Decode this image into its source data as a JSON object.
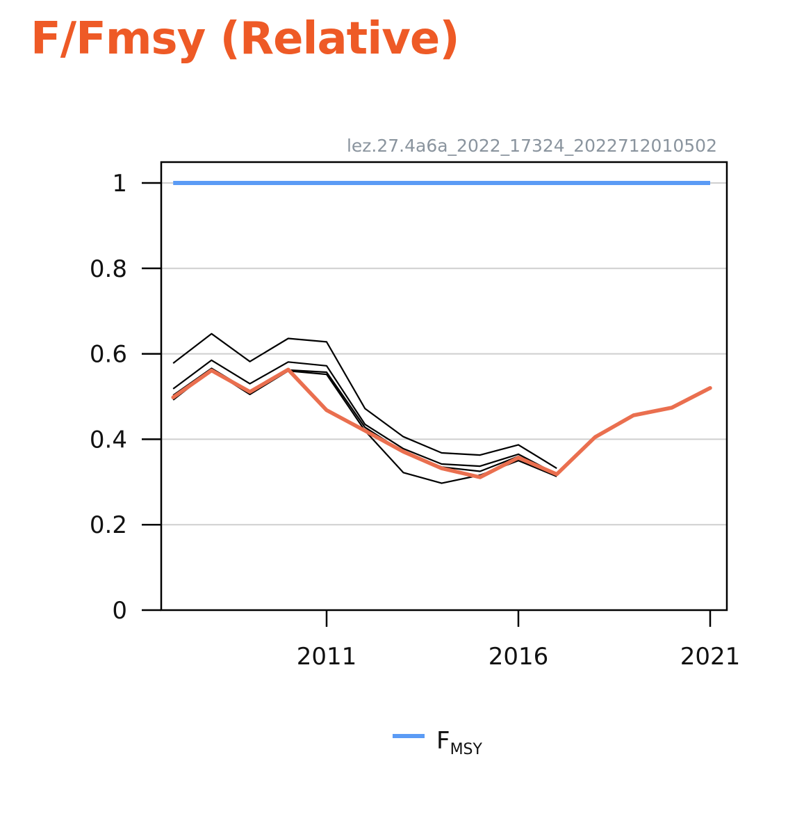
{
  "title": "F/Fmsy (Relative)",
  "colors": {
    "title": "#ee5a26",
    "reference": "#5b9bf5",
    "latest": "#ea6f4f",
    "historical": "#000000",
    "grid": "#cfcfcf"
  },
  "chart_data": {
    "type": "line",
    "subtitle": "lez.27.4a6a_2022_17324_2022712010502",
    "xlabel": "",
    "ylabel": "",
    "xlim": [
      2006.6,
      2021.4
    ],
    "ylim": [
      0,
      1.05
    ],
    "x_ticks": [
      2011,
      2016,
      2021
    ],
    "y_ticks": [
      0,
      0.2,
      0.4,
      0.6,
      0.8,
      1
    ],
    "y_tick_labels": [
      "0",
      "0.2",
      "0.4",
      "0.6",
      "0.8",
      "1"
    ],
    "grid": "horizontal",
    "legend_position": "bottom-center",
    "reference_line": {
      "name": "F",
      "name_sub": "MSY",
      "value": 1,
      "x": [
        2007,
        2021
      ]
    },
    "historical_series": [
      {
        "x": [
          2007,
          2008,
          2009,
          2010,
          2011,
          2012,
          2013,
          2014,
          2015,
          2016,
          2017
        ],
        "y": [
          0.578,
          0.647,
          0.582,
          0.636,
          0.628,
          0.472,
          0.406,
          0.368,
          0.363,
          0.387,
          0.332
        ]
      },
      {
        "x": [
          2007,
          2008,
          2009,
          2010,
          2011,
          2012,
          2013,
          2014,
          2015,
          2016,
          2017
        ],
        "y": [
          0.518,
          0.585,
          0.53,
          0.581,
          0.572,
          0.435,
          0.378,
          0.342,
          0.337,
          0.365,
          0.318
        ]
      },
      {
        "x": [
          2007,
          2008,
          2009,
          2010,
          2011,
          2012,
          2013,
          2014,
          2015,
          2016,
          2017
        ],
        "y": [
          0.492,
          0.562,
          0.505,
          0.56,
          0.552,
          0.42,
          0.322,
          0.297,
          0.316,
          0.35,
          0.313
        ]
      },
      {
        "x": [
          2007,
          2008,
          2009,
          2010,
          2011,
          2012,
          2013,
          2014,
          2015,
          2016,
          2017
        ],
        "y": [
          0.503,
          0.566,
          0.512,
          0.562,
          0.557,
          0.428,
          0.37,
          0.335,
          0.325,
          0.36,
          0.316
        ]
      }
    ],
    "latest_series": {
      "x": [
        2007,
        2008,
        2009,
        2010,
        2011,
        2012,
        2013,
        2014,
        2015,
        2016,
        2017,
        2018,
        2019,
        2020,
        2021
      ],
      "y": [
        0.498,
        0.561,
        0.511,
        0.563,
        0.468,
        0.42,
        0.371,
        0.332,
        0.311,
        0.357,
        0.318,
        0.405,
        0.456,
        0.474,
        0.52
      ]
    }
  }
}
